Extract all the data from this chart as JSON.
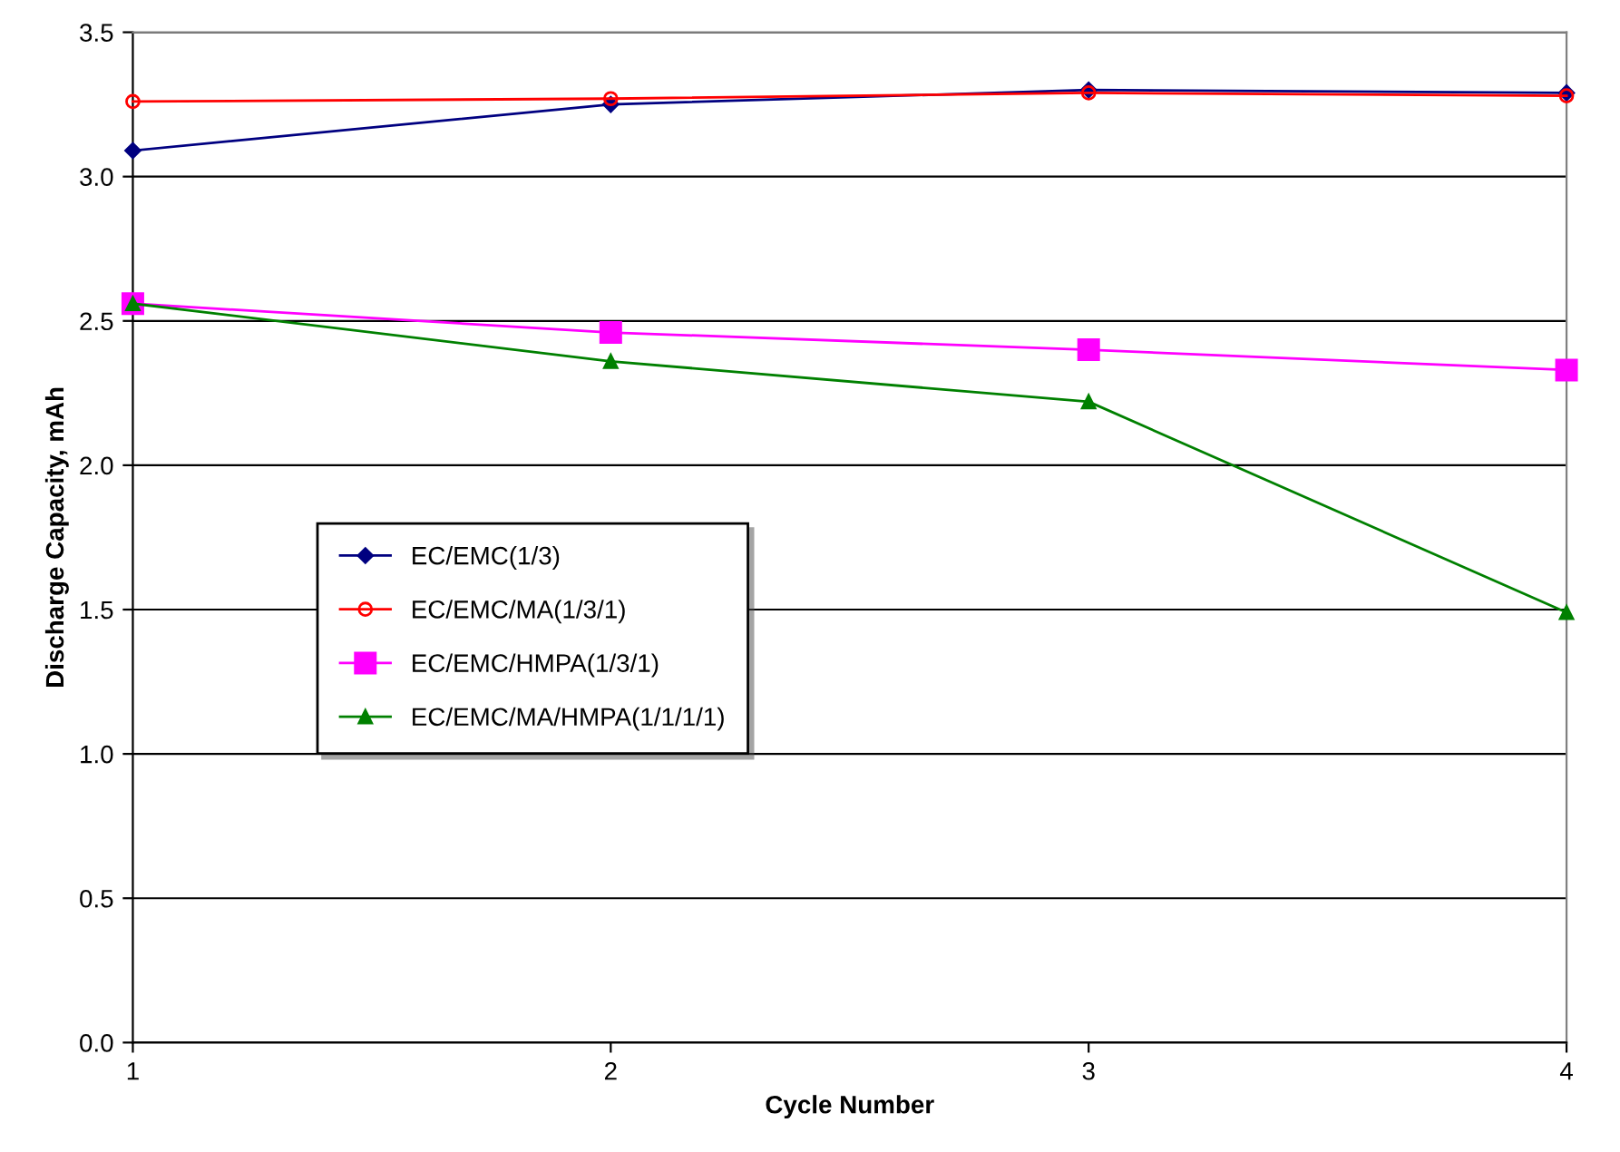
{
  "chart_data": {
    "type": "line",
    "xlabel": "Cycle Number",
    "ylabel": "Discharge Capacity, mAh",
    "x": [
      1,
      2,
      3,
      4
    ],
    "xlim": [
      1,
      4
    ],
    "xticks": [
      1,
      2,
      3,
      4
    ],
    "ylim": [
      0,
      3.5
    ],
    "yticks": [
      {
        "value": 0,
        "label": "0.0"
      },
      {
        "value": 0.5,
        "label": "0.5"
      },
      {
        "value": 1,
        "label": "1.0"
      },
      {
        "value": 1.5,
        "label": "1.5"
      },
      {
        "value": 2,
        "label": "2.0"
      },
      {
        "value": 2.5,
        "label": "2.5"
      },
      {
        "value": 3,
        "label": "3.0"
      },
      {
        "value": 3.5,
        "label": "3.5"
      }
    ],
    "grid": "y",
    "legend": "left",
    "series": [
      {
        "name": "EC/EMC(1/3)",
        "color": "#000080",
        "marker": "diamond",
        "values": [
          3.09,
          3.25,
          3.3,
          3.29
        ]
      },
      {
        "name": "EC/EMC/MA(1/3/1)",
        "color": "#ff0000",
        "marker": "circle",
        "values": [
          3.26,
          3.27,
          3.29,
          3.28
        ]
      },
      {
        "name": "EC/EMC/HMPA(1/3/1)",
        "color": "#ff00ff",
        "marker": "square",
        "values": [
          2.56,
          2.46,
          2.4,
          2.33
        ]
      },
      {
        "name": "EC/EMC/MA/HMPA(1/1/1/1)",
        "color": "#008000",
        "marker": "triangle",
        "values": [
          2.56,
          2.36,
          2.22,
          1.49
        ]
      }
    ]
  }
}
